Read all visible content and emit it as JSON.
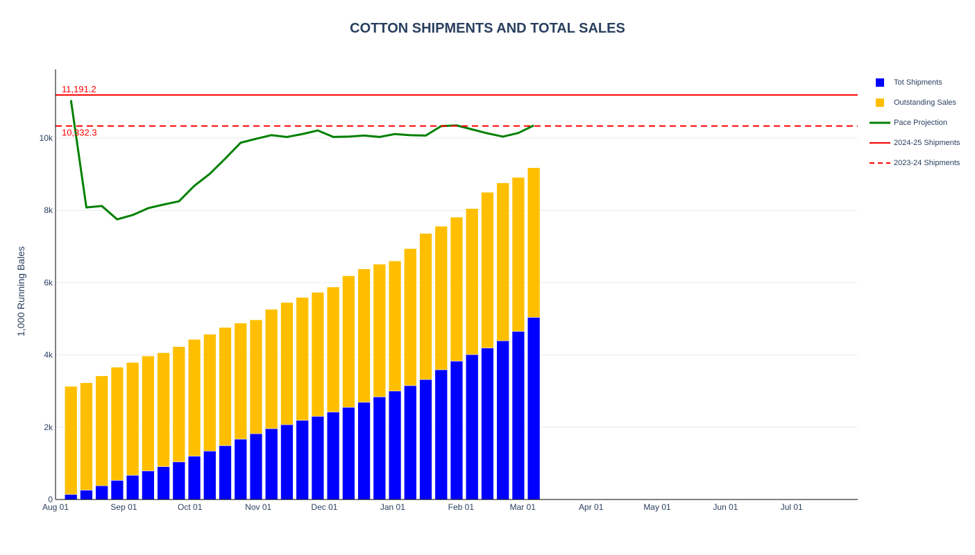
{
  "title": "COTTON SHIPMENTS AND TOTAL SALES",
  "chart_data": {
    "type": "bar",
    "title": "COTTON SHIPMENTS AND TOTAL SALES",
    "xlabel": "",
    "ylabel": "1,000 Running Bales",
    "ylim": [
      0,
      11900
    ],
    "xlim": [
      "2024-08-01",
      "2025-07-31"
    ],
    "barmode": "stack",
    "x_tick_labels": [
      "Aug 01",
      "Sep 01",
      "Oct 01",
      "Nov 01",
      "Dec 01",
      "Jan 01",
      "Feb 01",
      "Mar 01",
      "Apr 01",
      "May 01",
      "Jun 01",
      "Jul 01"
    ],
    "x_tick_dates": [
      "2024-08-01",
      "2024-09-01",
      "2024-10-01",
      "2024-11-01",
      "2024-12-01",
      "2025-01-01",
      "2025-02-01",
      "2025-03-01",
      "2025-04-01",
      "2025-05-01",
      "2025-06-01",
      "2025-07-01"
    ],
    "y_tick_labels": [
      "0",
      "2k",
      "4k",
      "6k",
      "8k",
      "10k"
    ],
    "y_tick_values": [
      0,
      2000,
      4000,
      6000,
      8000,
      10000
    ],
    "grid": true,
    "legend_position": "top-right",
    "dates": [
      "2024-08-08",
      "2024-08-15",
      "2024-08-22",
      "2024-08-29",
      "2024-09-05",
      "2024-09-12",
      "2024-09-19",
      "2024-09-26",
      "2024-10-03",
      "2024-10-10",
      "2024-10-17",
      "2024-10-24",
      "2024-10-31",
      "2024-11-07",
      "2024-11-14",
      "2024-11-21",
      "2024-11-28",
      "2024-12-05",
      "2024-12-12",
      "2024-12-19",
      "2024-12-26",
      "2025-01-02",
      "2025-01-09",
      "2025-01-16",
      "2025-01-23",
      "2025-01-30",
      "2025-02-06",
      "2025-02-13",
      "2025-02-20",
      "2025-02-27",
      "2025-03-06"
    ],
    "series": [
      {
        "name": "Tot Shipments",
        "type": "bar",
        "color": "#0000ff",
        "values": [
          140,
          260,
          380,
          530,
          670,
          790,
          910,
          1040,
          1200,
          1340,
          1490,
          1670,
          1820,
          1960,
          2070,
          2190,
          2300,
          2420,
          2550,
          2690,
          2840,
          3000,
          3150,
          3320,
          3590,
          3830,
          4010,
          4190,
          4390,
          4650,
          5040
        ]
      },
      {
        "name": "Outstanding Sales",
        "type": "bar",
        "color": "#ffbf00",
        "values": [
          2990,
          2970,
          3040,
          3130,
          3120,
          3180,
          3150,
          3190,
          3230,
          3230,
          3270,
          3210,
          3150,
          3300,
          3380,
          3400,
          3430,
          3460,
          3640,
          3690,
          3670,
          3600,
          3790,
          4040,
          3970,
          3980,
          4040,
          4310,
          4370,
          4260,
          4140
        ]
      },
      {
        "name": "Pace Projection",
        "type": "line",
        "color": "#008000",
        "values": [
          11050,
          8080,
          8120,
          7750,
          7870,
          8060,
          8160,
          8250,
          8680,
          9010,
          9430,
          9870,
          9980,
          10080,
          10030,
          10110,
          10210,
          10030,
          10040,
          10070,
          10030,
          10110,
          10080,
          10070,
          10330,
          10350,
          10240,
          10130,
          10040,
          10140,
          10350
        ]
      }
    ],
    "reference_lines": [
      {
        "name": "2024-25 Shipments",
        "value": 11191.2,
        "label": "11,191.2",
        "color": "#ff0000",
        "dash": "solid"
      },
      {
        "name": "2023-24 Shipments",
        "value": 10332.3,
        "label": "10,332.3",
        "color": "#ff0000",
        "dash": "dash"
      }
    ]
  }
}
